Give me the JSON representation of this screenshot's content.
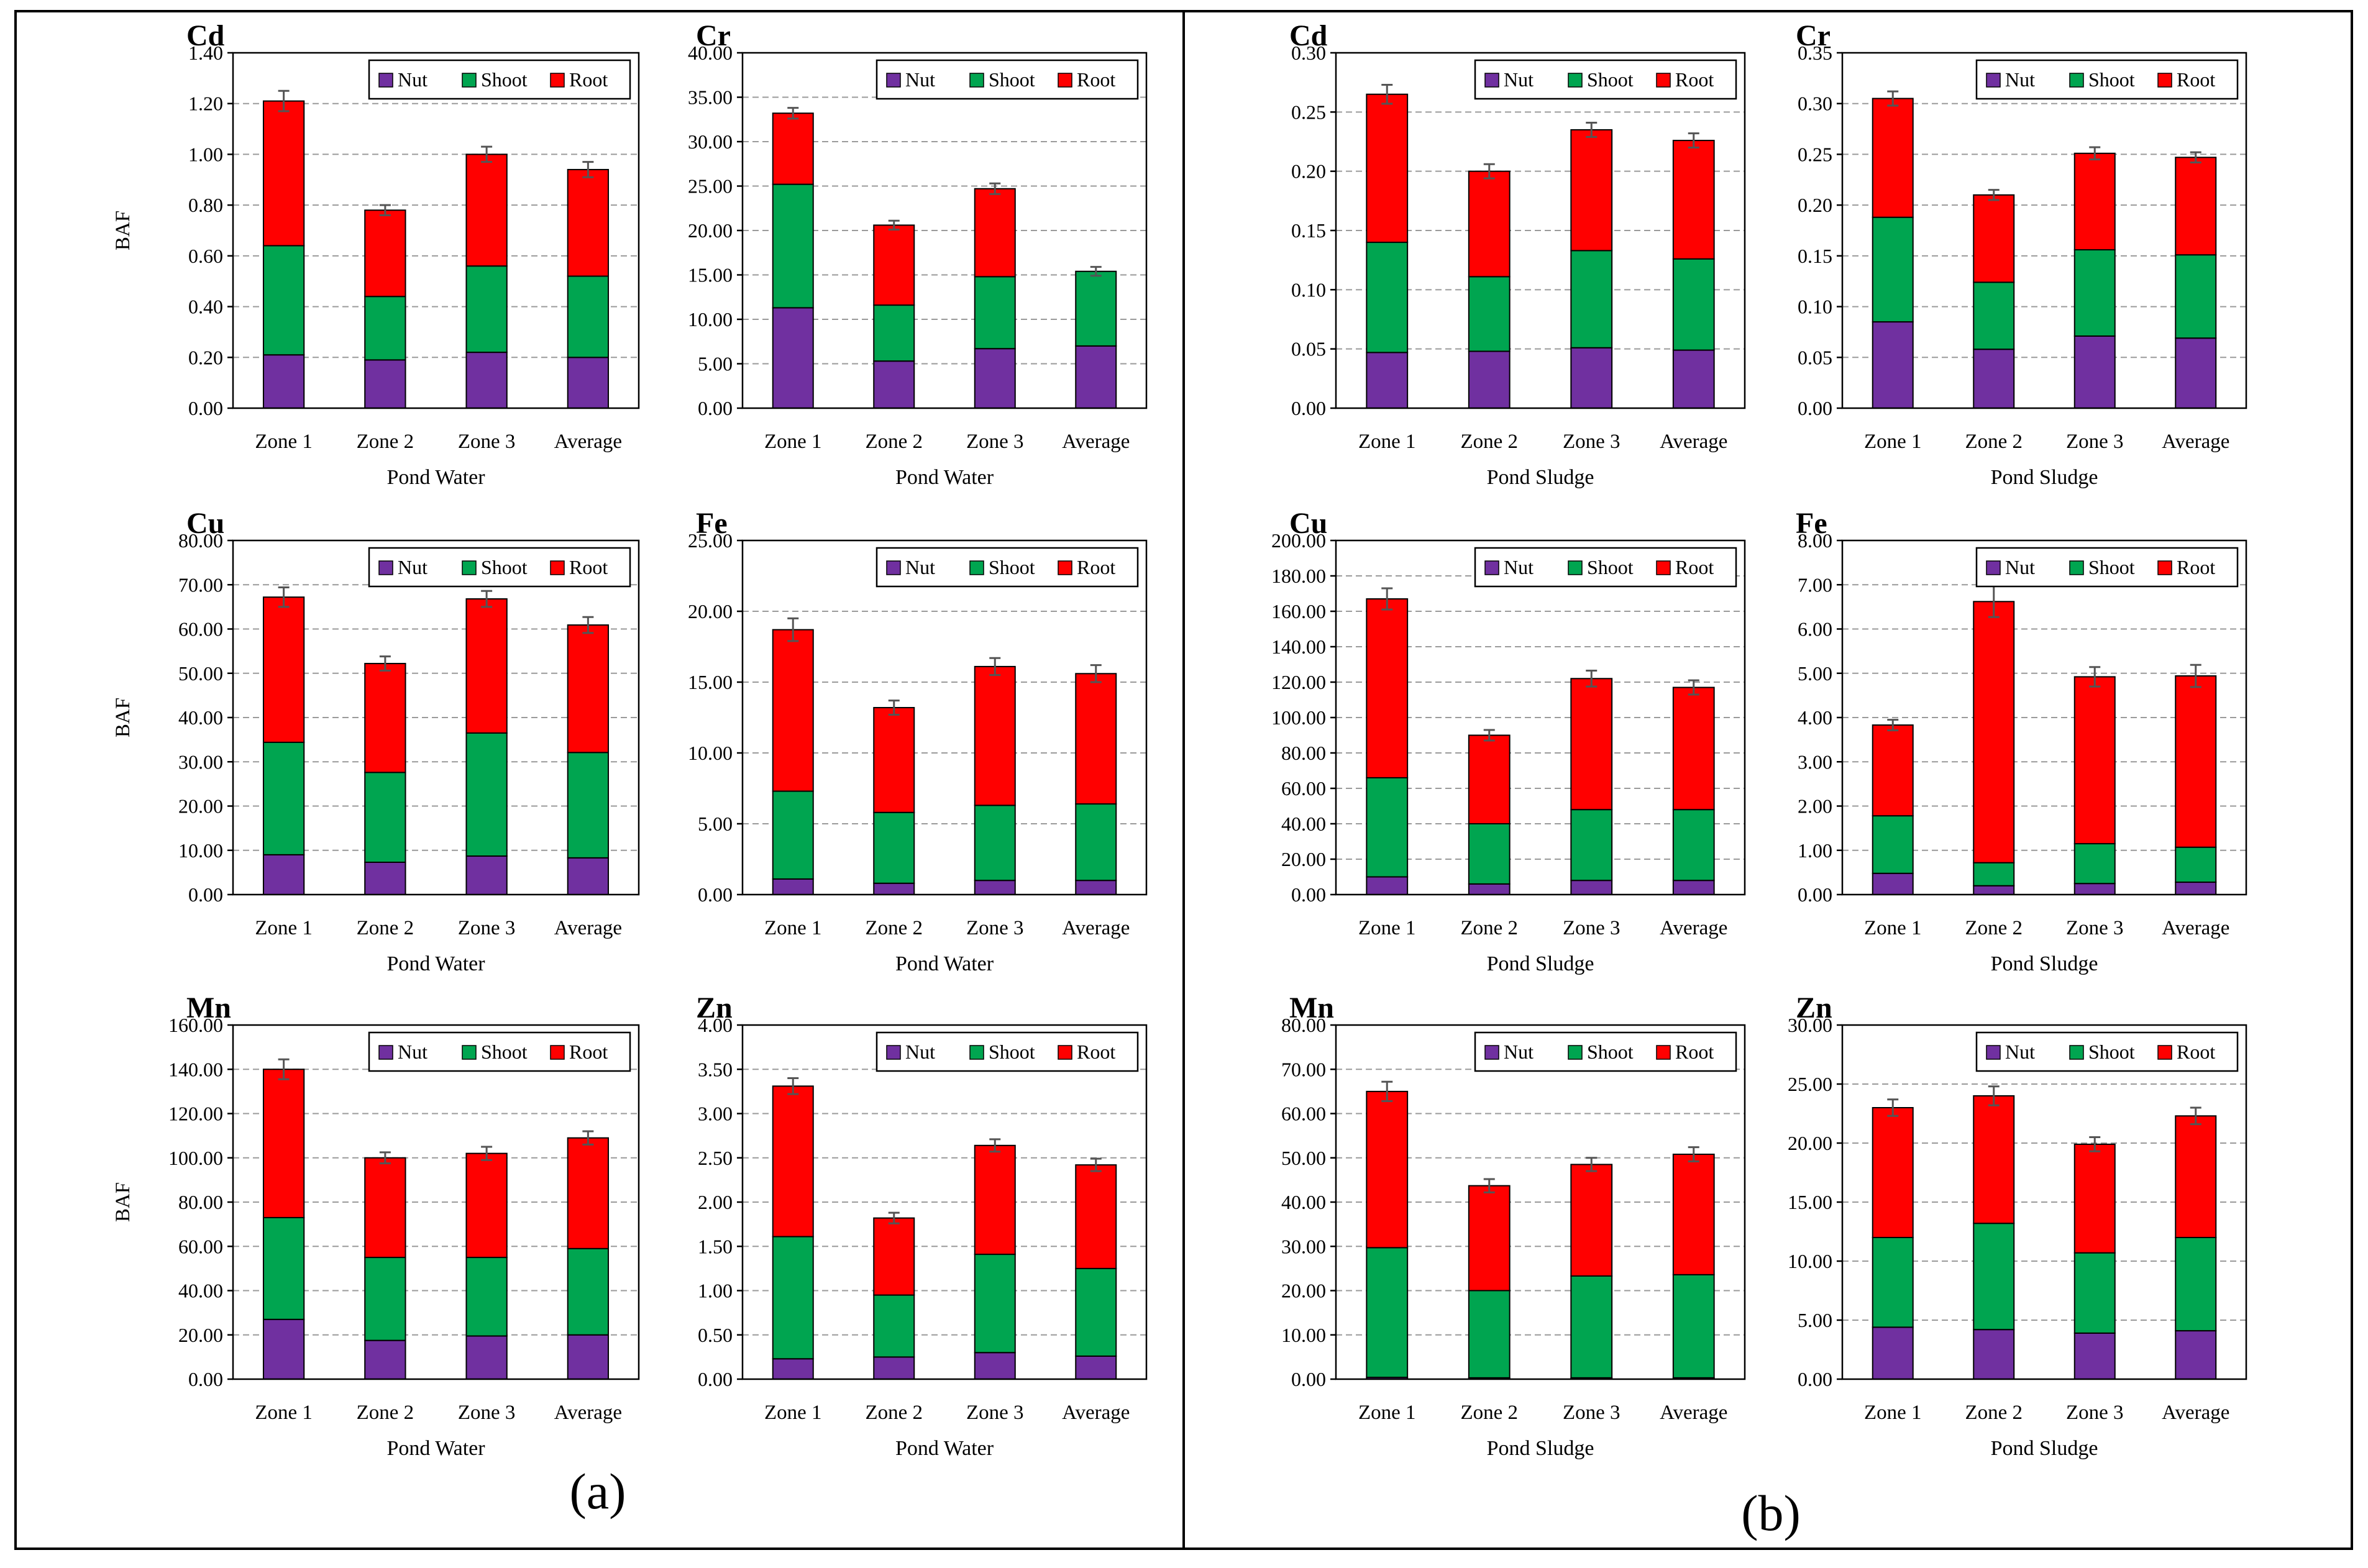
{
  "colors": {
    "nut": "#7030A0",
    "shoot": "#00A550",
    "root": "#FF0000",
    "frame": "#000000",
    "grid": "#9A9A9A",
    "error_bar": "#555555"
  },
  "panels": [
    {
      "label": "(a)"
    },
    {
      "label": "(b)"
    }
  ],
  "chart_data": [
    {
      "type": "bar",
      "stacked": true,
      "panel": "a",
      "title": "Cd",
      "xlabel": "Pond Water",
      "ylabel": "BAF",
      "categories": [
        "Zone 1",
        "Zone 2",
        "Zone 3",
        "Average"
      ],
      "ylim": [
        0,
        1.4
      ],
      "ytick_step": 0.2,
      "decimals": 2,
      "legend": "top-right",
      "series": [
        {
          "name": "Nut",
          "color": "#7030A0",
          "values": [
            0.21,
            0.19,
            0.22,
            0.2
          ]
        },
        {
          "name": "Shoot",
          "color": "#00A550",
          "values": [
            0.43,
            0.25,
            0.34,
            0.32
          ]
        },
        {
          "name": "Root",
          "color": "#FF0000",
          "values": [
            0.57,
            0.34,
            0.44,
            0.42
          ]
        }
      ],
      "errors": [
        0.04,
        0.02,
        0.03,
        0.03
      ]
    },
    {
      "type": "bar",
      "stacked": true,
      "panel": "a",
      "title": "Cr",
      "xlabel": "Pond Water",
      "ylabel": "",
      "categories": [
        "Zone 1",
        "Zone 2",
        "Zone 3",
        "Average"
      ],
      "ylim": [
        0,
        40
      ],
      "ytick_step": 5,
      "decimals": 2,
      "legend": "top-right",
      "series": [
        {
          "name": "Nut",
          "color": "#7030A0",
          "values": [
            11.3,
            5.3,
            6.7,
            7.0
          ]
        },
        {
          "name": "Shoot",
          "color": "#00A550",
          "values": [
            13.9,
            6.3,
            8.1,
            8.4
          ]
        },
        {
          "name": "Root",
          "color": "#FF0000",
          "values": [
            8.0,
            9.0,
            9.9,
            0.0
          ]
        }
      ],
      "errors": [
        0.6,
        0.5,
        0.6,
        0.5
      ]
    },
    {
      "type": "bar",
      "stacked": true,
      "panel": "b",
      "title": "Cd",
      "xlabel": "Pond Sludge",
      "ylabel": "",
      "categories": [
        "Zone 1",
        "Zone 2",
        "Zone 3",
        "Average"
      ],
      "ylim": [
        0,
        0.3
      ],
      "ytick_step": 0.05,
      "decimals": 2,
      "legend": "top-right",
      "series": [
        {
          "name": "Nut",
          "color": "#7030A0",
          "values": [
            0.047,
            0.048,
            0.051,
            0.049
          ]
        },
        {
          "name": "Shoot",
          "color": "#00A550",
          "values": [
            0.093,
            0.063,
            0.082,
            0.077
          ]
        },
        {
          "name": "Root",
          "color": "#FF0000",
          "values": [
            0.125,
            0.089,
            0.102,
            0.1
          ]
        }
      ],
      "errors": [
        0.008,
        0.006,
        0.006,
        0.006
      ]
    },
    {
      "type": "bar",
      "stacked": true,
      "panel": "b",
      "title": "Cr",
      "xlabel": "Pond Sludge",
      "ylabel": "",
      "categories": [
        "Zone 1",
        "Zone 2",
        "Zone 3",
        "Average"
      ],
      "ylim": [
        0,
        0.35
      ],
      "ytick_step": 0.05,
      "decimals": 2,
      "legend": "top-right",
      "series": [
        {
          "name": "Nut",
          "color": "#7030A0",
          "values": [
            0.085,
            0.058,
            0.071,
            0.069
          ]
        },
        {
          "name": "Shoot",
          "color": "#00A550",
          "values": [
            0.103,
            0.066,
            0.085,
            0.082
          ]
        },
        {
          "name": "Root",
          "color": "#FF0000",
          "values": [
            0.117,
            0.086,
            0.095,
            0.096
          ]
        }
      ],
      "errors": [
        0.007,
        0.005,
        0.006,
        0.005
      ]
    },
    {
      "type": "bar",
      "stacked": true,
      "panel": "a",
      "title": "Cu",
      "xlabel": "Pond Water",
      "ylabel": "BAF",
      "categories": [
        "Zone 1",
        "Zone 2",
        "Zone 3",
        "Average"
      ],
      "ylim": [
        0,
        80
      ],
      "ytick_step": 10,
      "decimals": 2,
      "legend": "top-right",
      "series": [
        {
          "name": "Nut",
          "color": "#7030A0",
          "values": [
            9.0,
            7.3,
            8.7,
            8.3
          ]
        },
        {
          "name": "Shoot",
          "color": "#00A550",
          "values": [
            25.4,
            20.3,
            27.8,
            23.8
          ]
        },
        {
          "name": "Root",
          "color": "#FF0000",
          "values": [
            32.8,
            24.6,
            30.3,
            28.8
          ]
        }
      ],
      "errors": [
        2.2,
        1.6,
        1.8,
        1.8
      ]
    },
    {
      "type": "bar",
      "stacked": true,
      "panel": "a",
      "title": "Fe",
      "xlabel": "Pond Water",
      "ylabel": "",
      "categories": [
        "Zone 1",
        "Zone 2",
        "Zone 3",
        "Average"
      ],
      "ylim": [
        0,
        25
      ],
      "ytick_step": 5,
      "decimals": 2,
      "legend": "top-right",
      "series": [
        {
          "name": "Nut",
          "color": "#7030A0",
          "values": [
            1.1,
            0.8,
            1.0,
            1.0
          ]
        },
        {
          "name": "Shoot",
          "color": "#00A550",
          "values": [
            6.2,
            5.0,
            5.3,
            5.4
          ]
        },
        {
          "name": "Root",
          "color": "#FF0000",
          "values": [
            11.4,
            7.4,
            9.8,
            9.2
          ]
        }
      ],
      "errors": [
        0.8,
        0.5,
        0.6,
        0.6
      ]
    },
    {
      "type": "bar",
      "stacked": true,
      "panel": "b",
      "title": "Cu",
      "xlabel": "Pond Sludge",
      "ylabel": "",
      "categories": [
        "Zone 1",
        "Zone 2",
        "Zone 3",
        "Average"
      ],
      "ylim": [
        0,
        200
      ],
      "ytick_step": 20,
      "decimals": 2,
      "legend": "top-right",
      "series": [
        {
          "name": "Nut",
          "color": "#7030A0",
          "values": [
            10.0,
            6.0,
            8.0,
            8.0
          ]
        },
        {
          "name": "Shoot",
          "color": "#00A550",
          "values": [
            56.0,
            34.0,
            40.0,
            40.0
          ]
        },
        {
          "name": "Root",
          "color": "#FF0000",
          "values": [
            101.0,
            50.0,
            74.0,
            69.0
          ]
        }
      ],
      "errors": [
        6.0,
        3.0,
        4.5,
        4.0
      ]
    },
    {
      "type": "bar",
      "stacked": true,
      "panel": "b",
      "title": "Fe",
      "xlabel": "Pond Sludge",
      "ylabel": "",
      "categories": [
        "Zone 1",
        "Zone 2",
        "Zone 3",
        "Average"
      ],
      "ylim": [
        0,
        8
      ],
      "ytick_step": 1,
      "decimals": 2,
      "legend": "top-right",
      "series": [
        {
          "name": "Nut",
          "color": "#7030A0",
          "values": [
            0.48,
            0.2,
            0.25,
            0.28
          ]
        },
        {
          "name": "Shoot",
          "color": "#00A550",
          "values": [
            1.3,
            0.52,
            0.9,
            0.79
          ]
        },
        {
          "name": "Root",
          "color": "#FF0000",
          "values": [
            2.05,
            5.9,
            3.77,
            3.87
          ]
        }
      ],
      "errors": [
        0.12,
        0.35,
        0.22,
        0.25
      ]
    },
    {
      "type": "bar",
      "stacked": true,
      "panel": "a",
      "title": "Mn",
      "xlabel": "Pond Water",
      "ylabel": "BAF",
      "categories": [
        "Zone 1",
        "Zone 2",
        "Zone 3",
        "Average"
      ],
      "ylim": [
        0,
        160
      ],
      "ytick_step": 20,
      "decimals": 2,
      "legend": "top-right",
      "series": [
        {
          "name": "Nut",
          "color": "#7030A0",
          "values": [
            27.0,
            17.5,
            19.5,
            20.0
          ]
        },
        {
          "name": "Shoot",
          "color": "#00A550",
          "values": [
            46.0,
            37.5,
            35.5,
            39.0
          ]
        },
        {
          "name": "Root",
          "color": "#FF0000",
          "values": [
            67.0,
            45.0,
            47.0,
            50.0
          ]
        }
      ],
      "errors": [
        4.5,
        2.5,
        3.0,
        3.0
      ]
    },
    {
      "type": "bar",
      "stacked": true,
      "panel": "a",
      "title": "Zn",
      "xlabel": "Pond Water",
      "ylabel": "",
      "categories": [
        "Zone 1",
        "Zone 2",
        "Zone 3",
        "Average"
      ],
      "ylim": [
        0,
        4
      ],
      "ytick_step": 0.5,
      "decimals": 2,
      "legend": "top-right",
      "series": [
        {
          "name": "Nut",
          "color": "#7030A0",
          "values": [
            0.23,
            0.25,
            0.3,
            0.26
          ]
        },
        {
          "name": "Shoot",
          "color": "#00A550",
          "values": [
            1.38,
            0.7,
            1.11,
            0.99
          ]
        },
        {
          "name": "Root",
          "color": "#FF0000",
          "values": [
            1.7,
            0.87,
            1.23,
            1.17
          ]
        }
      ],
      "errors": [
        0.09,
        0.06,
        0.07,
        0.07
      ]
    },
    {
      "type": "bar",
      "stacked": true,
      "panel": "b",
      "title": "Mn",
      "xlabel": "Pond Sludge",
      "ylabel": "",
      "categories": [
        "Zone 1",
        "Zone 2",
        "Zone 3",
        "Average"
      ],
      "ylim": [
        0,
        80
      ],
      "ytick_step": 10,
      "decimals": 2,
      "legend": "top-right",
      "series": [
        {
          "name": "Nut",
          "color": "#7030A0",
          "values": [
            0.4,
            0.3,
            0.3,
            0.3
          ]
        },
        {
          "name": "Shoot",
          "color": "#00A550",
          "values": [
            29.3,
            19.7,
            23.0,
            23.3
          ]
        },
        {
          "name": "Root",
          "color": "#FF0000",
          "values": [
            35.3,
            23.7,
            25.2,
            27.2
          ]
        }
      ],
      "errors": [
        2.2,
        1.5,
        1.5,
        1.6
      ]
    },
    {
      "type": "bar",
      "stacked": true,
      "panel": "b",
      "title": "Zn",
      "xlabel": "Pond Sludge",
      "ylabel": "",
      "categories": [
        "Zone 1",
        "Zone 2",
        "Zone 3",
        "Average"
      ],
      "ylim": [
        0,
        30
      ],
      "ytick_step": 5,
      "decimals": 2,
      "legend": "top-right",
      "series": [
        {
          "name": "Nut",
          "color": "#7030A0",
          "values": [
            4.4,
            4.2,
            3.9,
            4.1
          ]
        },
        {
          "name": "Shoot",
          "color": "#00A550",
          "values": [
            7.6,
            9.0,
            6.8,
            7.9
          ]
        },
        {
          "name": "Root",
          "color": "#FF0000",
          "values": [
            11.0,
            10.8,
            9.2,
            10.3
          ]
        }
      ],
      "errors": [
        0.7,
        0.8,
        0.6,
        0.7
      ]
    }
  ]
}
